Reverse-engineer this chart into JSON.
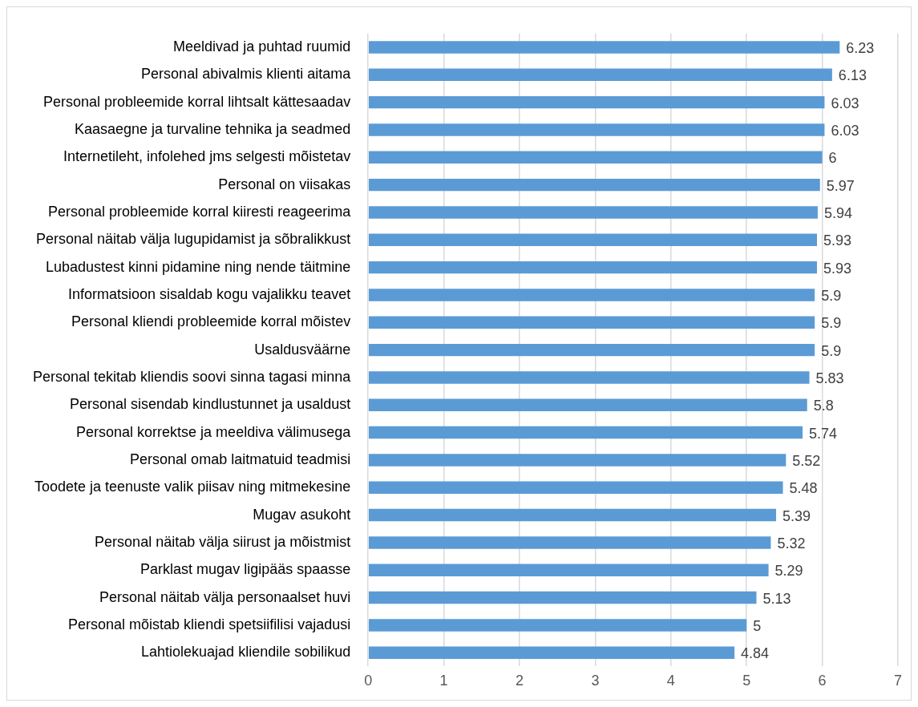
{
  "chart_data": {
    "type": "bar",
    "orientation": "horizontal",
    "categories": [
      "Meeldivad ja puhtad ruumid",
      "Personal abivalmis klienti aitama",
      "Personal probleemide korral lihtsalt kättesaadav",
      "Kaasaegne ja turvaline tehnika ja seadmed",
      "Internetileht, infolehed jms selgesti mõistetav",
      "Personal on viisakas",
      "Personal probleemide korral kiiresti reageerima",
      "Personal näitab välja lugupidamist ja sõbralikkust",
      "Lubadustest kinni pidamine ning nende täitmine",
      "Informatsioon sisaldab kogu vajalikku teavet",
      "Personal kliendi probleemide korral mõistev",
      "Usaldusväärne",
      "Personal tekitab kliendis soovi sinna tagasi minna",
      "Personal sisendab kindlustunnet ja usaldust",
      "Personal korrektse ja meeldiva välimusega",
      "Personal omab laitmatuid teadmisi",
      "Toodete ja teenuste valik piisav ning mitmekesine",
      "Mugav asukoht",
      "Personal näitab välja siirust ja mõistmist",
      "Parklast mugav ligipääs spaasse",
      "Personal näitab välja personaalset huvi",
      "Personal mõistab kliendi spetsiifilisi vajadusi",
      "Lahtiolekuajad kliendile sobilikud"
    ],
    "values": [
      6.23,
      6.13,
      6.03,
      6.03,
      6,
      5.97,
      5.94,
      5.93,
      5.93,
      5.9,
      5.9,
      5.9,
      5.83,
      5.8,
      5.74,
      5.52,
      5.48,
      5.39,
      5.32,
      5.29,
      5.13,
      5,
      4.84
    ],
    "color": "#5b9bd5",
    "xlim": [
      0,
      7
    ],
    "xticks": [
      0,
      1,
      2,
      3,
      4,
      5,
      6,
      7
    ],
    "grid": "x",
    "data_labels": true
  }
}
